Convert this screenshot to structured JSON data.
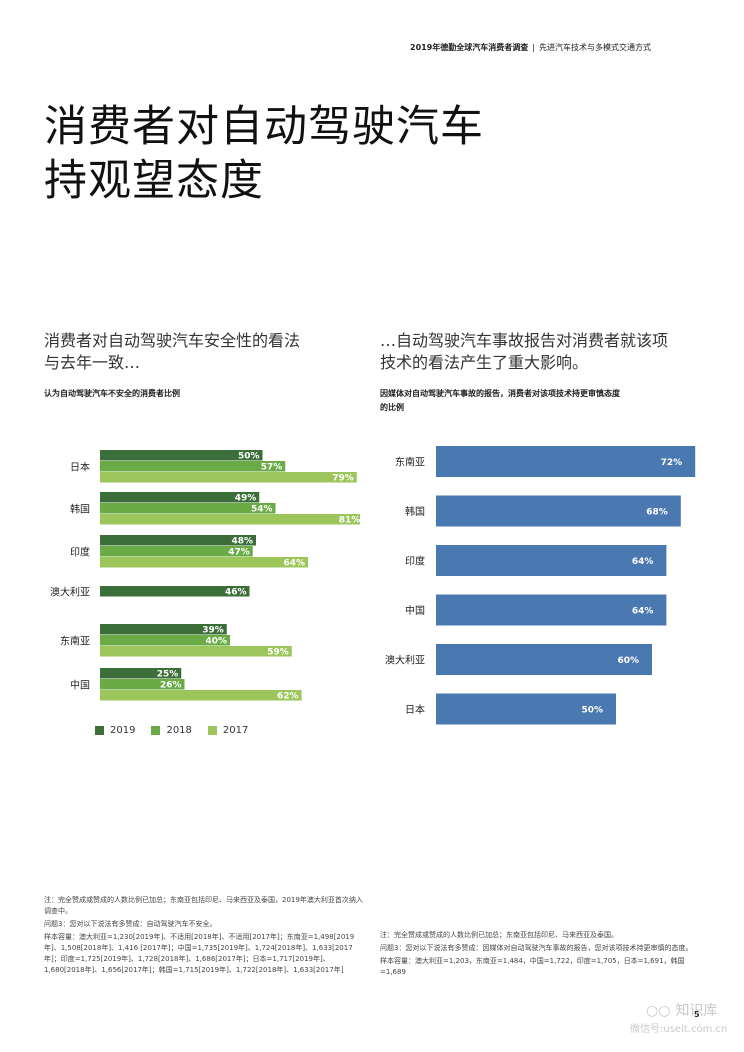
{
  "header": {
    "report": "2019年德勤全球汽车消费者调查",
    "separator": "|",
    "section": "先进汽车技术与多模式交通方式"
  },
  "title": {
    "line1": "消费者对自动驾驶汽车",
    "line2": "持观望态度"
  },
  "left": {
    "subtitle_line1": "消费者对自动驾驶汽车安全性的看法",
    "subtitle_line2": "与去年一致…",
    "chart_title": "认为自动驾驶汽车不安全的消费者比例",
    "notes": [
      "注：完全赞成或赞成的人数比例已加总；东南亚包括印尼、马来西亚及泰国，2019年澳大利亚首次纳入调查中。",
      "问题3：您对以下说法有多赞成：自动驾驶汽车不安全。",
      "样本容量：澳大利亚=1,230[2019年]、不适用[2018年]、不适用[2017年]；东南亚=1,498[2019年]、1,508[2018年]、1,416 [2017年]；中国=1,735[2019年]、1,724[2018年]、1,633[2017年]；印度=1,725[2019年]、1,728[2018年]、1,686[2017年]；日本=1,717[2019年]、1,680[2018年]、1,656[2017年]；韩国=1,715[2019年]、1,722[2018年]、1,633[2017年]"
    ]
  },
  "right": {
    "subtitle_line1": "…自动驾驶汽车事故报告对消费者就该项",
    "subtitle_line2": "技术的看法产生了重大影响。",
    "chart_title_line1": "因媒体对自动驾驶汽车事故的报告，消费者对该项技术持更审慎态度",
    "chart_title_line2": "的比例",
    "notes": [
      "注：完全赞成或赞成的人数比例已加总；东南亚包括印尼、马来西亚及泰国。",
      "问题3：您对以下说法有多赞成：因媒体对自动驾驶汽车事故的报告，您对该项技术持更审慎的态度。",
      "样本容量：澳大利亚=1,203，东南亚=1,484，中国=1,722，印度=1,705，日本=1,691，韩国=1,689"
    ]
  },
  "page_number": "5",
  "watermark": {
    "brand": "知识库",
    "wechat": "微信号:useit.com.cn"
  },
  "chart_data": [
    {
      "type": "bar",
      "orientation": "horizontal",
      "title": "认为自动驾驶汽车不安全的消费者比例",
      "categories": [
        "日本",
        "韩国",
        "印度",
        "澳大利亚",
        "东南亚",
        "中国"
      ],
      "series": [
        {
          "name": "2019",
          "color": "#3c6e3a",
          "values": [
            50,
            49,
            48,
            46,
            39,
            25
          ],
          "labels": [
            "50%",
            "49%",
            "48%",
            "46%",
            "39%",
            "25%"
          ]
        },
        {
          "name": "2018",
          "color": "#6aab46",
          "values": [
            57,
            54,
            47,
            null,
            40,
            26
          ],
          "labels": [
            "57%",
            "54%",
            "47%",
            "",
            "40%",
            "26%"
          ]
        },
        {
          "name": "2017",
          "color": "#9cc65c",
          "values": [
            79,
            81,
            64,
            null,
            59,
            62
          ],
          "labels": [
            "79%",
            "81%",
            "64%",
            "",
            "59%",
            "62%"
          ]
        }
      ],
      "xlim": [
        0,
        100
      ],
      "legend": "bottom"
    },
    {
      "type": "bar",
      "orientation": "horizontal",
      "title": "因媒体对自动驾驶汽车事故的报告，消费者对该项技术持更审慎态度的比例",
      "categories": [
        "东南亚",
        "韩国",
        "印度",
        "中国",
        "澳大利亚",
        "日本"
      ],
      "values": [
        72,
        68,
        64,
        64,
        60,
        50
      ],
      "labels": [
        "72%",
        "68%",
        "64%",
        "64%",
        "60%",
        "50%"
      ],
      "color": "#4a78b0",
      "xlim": [
        0,
        100
      ]
    }
  ]
}
